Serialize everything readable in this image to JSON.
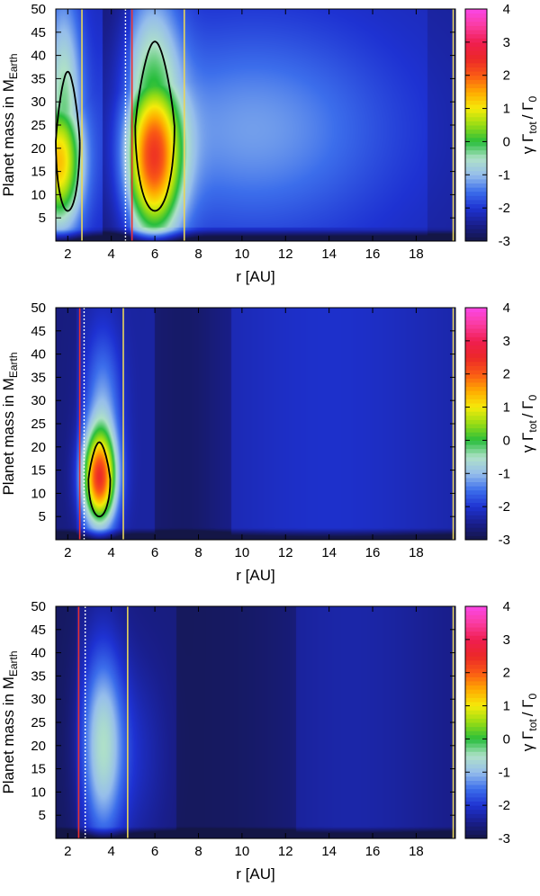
{
  "chart_data": [
    {
      "type": "heatmap",
      "xlabel": "r [AU]",
      "ylabel": "Planet mass in M",
      "ylabel_sub": "Earth",
      "x_ticks": [
        "2",
        "4",
        "6",
        "8",
        "10",
        "12",
        "14",
        "16",
        "18"
      ],
      "y_ticks": [
        "5",
        "10",
        "15",
        "20",
        "25",
        "30",
        "35",
        "40",
        "45",
        "50"
      ],
      "xlim": [
        1.45,
        19.8
      ],
      "ylim": [
        0,
        50
      ],
      "colorbar": {
        "label": "γ Γ",
        "label_sub": "tot",
        "label_tail": "/ Γ",
        "label_sub2": "0",
        "ticks": [
          "4",
          "3",
          "2",
          "1",
          "0",
          "-1",
          "-2",
          "-3"
        ],
        "range": [
          -3,
          4
        ]
      },
      "vertical_lines": [
        {
          "x": 2.65,
          "color": "#e8d55a",
          "style": "solid"
        },
        {
          "x": 4.65,
          "color": "#ffffff",
          "style": "dotted"
        },
        {
          "x": 4.95,
          "color": "#e83030",
          "style": "solid"
        },
        {
          "x": 7.35,
          "color": "#e8d55a",
          "style": "solid"
        },
        {
          "x": 19.7,
          "color": "#e8d55a",
          "style": "solid"
        }
      ],
      "zero_contours": [
        {
          "x_range": [
            1.45,
            2.55
          ],
          "m_range": [
            6.5,
            36.5
          ],
          "peak_x": 1.8
        },
        {
          "x_range": [
            5.1,
            6.9
          ],
          "m_range": [
            6.5,
            43
          ],
          "peak_x": 5.7
        }
      ],
      "grid": false,
      "legend": "none"
    },
    {
      "type": "heatmap",
      "xlabel": "r [AU]",
      "ylabel": "Planet mass in M",
      "ylabel_sub": "Earth",
      "x_ticks": [
        "2",
        "4",
        "6",
        "8",
        "10",
        "12",
        "14",
        "16",
        "18"
      ],
      "y_ticks": [
        "5",
        "10",
        "15",
        "20",
        "25",
        "30",
        "35",
        "40",
        "45",
        "50"
      ],
      "xlim": [
        1.45,
        19.8
      ],
      "ylim": [
        0,
        50
      ],
      "colorbar": {
        "label": "γ Γ",
        "label_sub": "tot",
        "label_tail": "/ Γ",
        "label_sub2": "0",
        "ticks": [
          "4",
          "3",
          "2",
          "1",
          "0",
          "-1",
          "-2",
          "-3"
        ],
        "range": [
          -3,
          4
        ]
      },
      "vertical_lines": [
        {
          "x": 2.55,
          "color": "#e83030",
          "style": "solid"
        },
        {
          "x": 2.75,
          "color": "#ffffff",
          "style": "dotted"
        },
        {
          "x": 4.55,
          "color": "#e8d55a",
          "style": "solid"
        },
        {
          "x": 19.7,
          "color": "#e8d55a",
          "style": "solid"
        }
      ],
      "zero_contours": [
        {
          "x_range": [
            2.95,
            3.95
          ],
          "m_range": [
            5,
            21
          ],
          "peak_x": 3.4
        }
      ],
      "grid": false,
      "legend": "none"
    },
    {
      "type": "heatmap",
      "xlabel": "r [AU]",
      "ylabel": "Planet mass in M",
      "ylabel_sub": "Earth",
      "x_ticks": [
        "2",
        "4",
        "6",
        "8",
        "10",
        "12",
        "14",
        "16",
        "18"
      ],
      "y_ticks": [
        "5",
        "10",
        "15",
        "20",
        "25",
        "30",
        "35",
        "40",
        "45",
        "50"
      ],
      "xlim": [
        1.45,
        19.8
      ],
      "ylim": [
        0,
        50
      ],
      "colorbar": {
        "label": "γ Γ",
        "label_sub": "tot",
        "label_tail": "/ Γ",
        "label_sub2": "0",
        "ticks": [
          "4",
          "3",
          "2",
          "1",
          "0",
          "-1",
          "-2",
          "-3"
        ],
        "range": [
          -3,
          4
        ]
      },
      "vertical_lines": [
        {
          "x": 2.5,
          "color": "#e83030",
          "style": "solid"
        },
        {
          "x": 2.8,
          "color": "#ffffff",
          "style": "dotted"
        },
        {
          "x": 4.75,
          "color": "#e8d55a",
          "style": "solid"
        },
        {
          "x": 19.7,
          "color": "#e8d55a",
          "style": "solid"
        }
      ],
      "zero_contours": [],
      "grid": false,
      "legend": "none"
    }
  ]
}
